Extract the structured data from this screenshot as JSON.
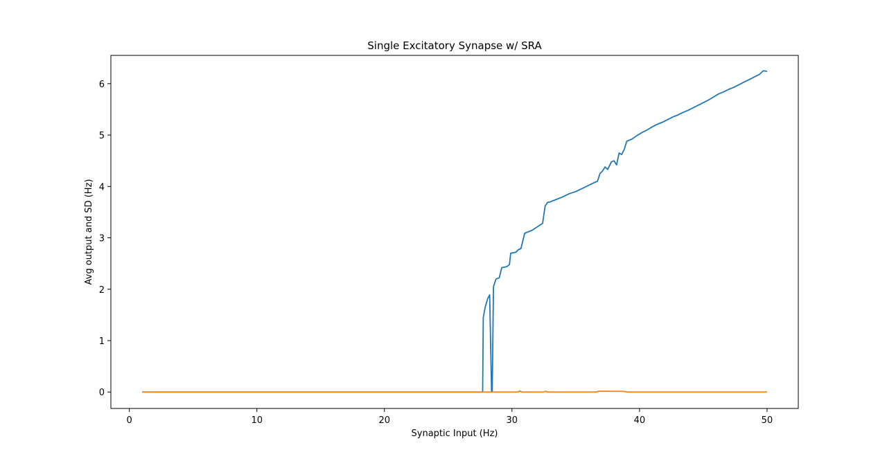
{
  "chart_data": {
    "type": "line",
    "title": "Single Excitatory Synapse w/ SRA",
    "xlabel": "Synaptic Input (Hz)",
    "ylabel": "Avg output and SD (Hz)",
    "xlim": [
      -1.45,
      52.45
    ],
    "ylim": [
      -0.32,
      6.55
    ],
    "xticks": [
      0,
      10,
      20,
      30,
      40,
      50
    ],
    "yticks": [
      0,
      1,
      2,
      3,
      4,
      5,
      6
    ],
    "grid": false,
    "legend": "none",
    "series": [
      {
        "color": "#1f77b4",
        "points": [
          [
            1,
            0
          ],
          [
            27.7,
            0
          ],
          [
            27.75,
            1.45
          ],
          [
            27.9,
            1.65
          ],
          [
            28.1,
            1.82
          ],
          [
            28.25,
            1.89
          ],
          [
            28.4,
            0
          ],
          [
            28.45,
            0
          ],
          [
            28.55,
            2.05
          ],
          [
            28.75,
            2.2
          ],
          [
            29,
            2.22
          ],
          [
            29.2,
            2.42
          ],
          [
            29.6,
            2.44
          ],
          [
            29.8,
            2.48
          ],
          [
            29.9,
            2.7
          ],
          [
            30.3,
            2.72
          ],
          [
            30.5,
            2.77
          ],
          [
            30.7,
            2.79
          ],
          [
            31,
            3.09
          ],
          [
            31.3,
            3.12
          ],
          [
            31.6,
            3.15
          ],
          [
            31.9,
            3.2
          ],
          [
            32.2,
            3.25
          ],
          [
            32.4,
            3.28
          ],
          [
            32.6,
            3.62
          ],
          [
            32.8,
            3.69
          ],
          [
            33,
            3.7
          ],
          [
            33.5,
            3.75
          ],
          [
            34,
            3.8
          ],
          [
            34.5,
            3.86
          ],
          [
            35,
            3.9
          ],
          [
            35.5,
            3.96
          ],
          [
            36,
            4.02
          ],
          [
            36.5,
            4.08
          ],
          [
            36.7,
            4.1
          ],
          [
            36.9,
            4.25
          ],
          [
            37.1,
            4.3
          ],
          [
            37.3,
            4.38
          ],
          [
            37.5,
            4.33
          ],
          [
            37.8,
            4.48
          ],
          [
            38,
            4.5
          ],
          [
            38.2,
            4.42
          ],
          [
            38.4,
            4.65
          ],
          [
            38.6,
            4.62
          ],
          [
            38.8,
            4.72
          ],
          [
            39,
            4.88
          ],
          [
            39.4,
            4.92
          ],
          [
            39.8,
            4.99
          ],
          [
            40.2,
            5.05
          ],
          [
            40.6,
            5.1
          ],
          [
            41,
            5.16
          ],
          [
            41.4,
            5.21
          ],
          [
            41.8,
            5.25
          ],
          [
            42.2,
            5.3
          ],
          [
            42.6,
            5.35
          ],
          [
            43,
            5.39
          ],
          [
            43.4,
            5.44
          ],
          [
            43.8,
            5.48
          ],
          [
            44.2,
            5.53
          ],
          [
            44.6,
            5.58
          ],
          [
            45,
            5.63
          ],
          [
            45.4,
            5.68
          ],
          [
            45.8,
            5.74
          ],
          [
            46.2,
            5.8
          ],
          [
            46.6,
            5.84
          ],
          [
            47,
            5.89
          ],
          [
            47.4,
            5.93
          ],
          [
            47.8,
            5.98
          ],
          [
            48.2,
            6.03
          ],
          [
            48.6,
            6.08
          ],
          [
            49,
            6.13
          ],
          [
            49.4,
            6.18
          ],
          [
            49.7,
            6.25
          ],
          [
            50,
            6.24
          ]
        ]
      },
      {
        "color": "#ff7f0e",
        "points": [
          [
            1,
            0
          ],
          [
            30.5,
            0
          ],
          [
            30.6,
            0.02
          ],
          [
            30.8,
            0
          ],
          [
            32.5,
            0
          ],
          [
            32.6,
            0.015
          ],
          [
            32.8,
            0
          ],
          [
            36.6,
            0
          ],
          [
            36.8,
            0.015
          ],
          [
            38.8,
            0.012
          ],
          [
            39,
            0
          ],
          [
            50,
            0
          ]
        ]
      }
    ]
  }
}
